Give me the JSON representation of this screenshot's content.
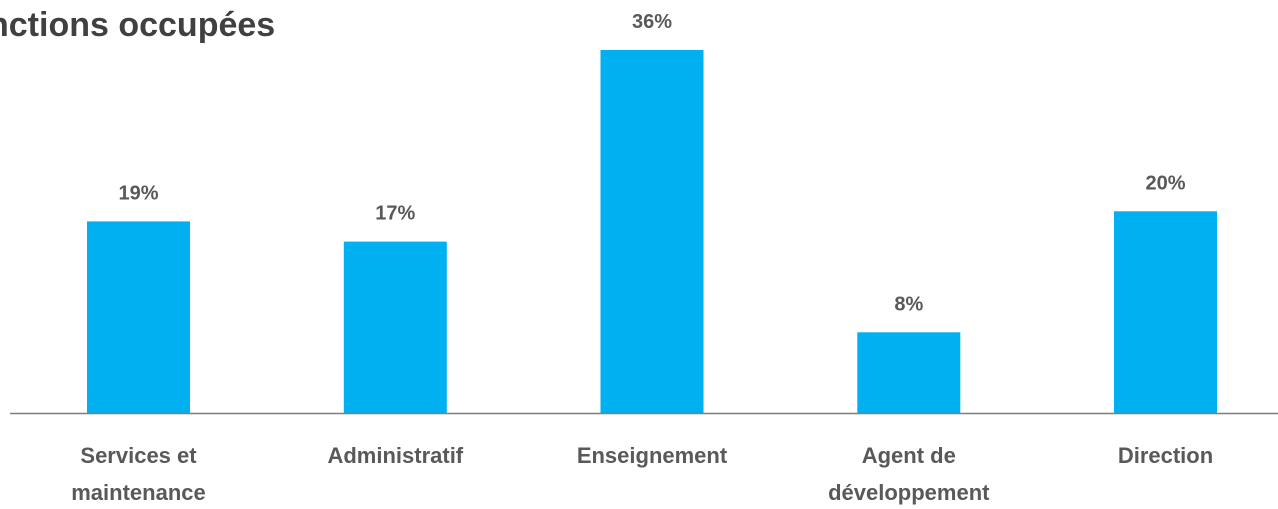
{
  "chart_data": {
    "type": "bar",
    "title": "nctions occupées",
    "categories": [
      [
        "Services et",
        "maintenance"
      ],
      [
        "Administratif"
      ],
      [
        "Enseignement"
      ],
      [
        "Agent de",
        "développement"
      ],
      [
        "Direction"
      ]
    ],
    "values": [
      19,
      17,
      36,
      8,
      20
    ],
    "value_labels": [
      "19%",
      "17%",
      "36%",
      "8%",
      "20%"
    ],
    "ylim": [
      0,
      36
    ],
    "grid": false,
    "bar_color": "#00B0F0",
    "axis_color": "#7F7F7F"
  }
}
